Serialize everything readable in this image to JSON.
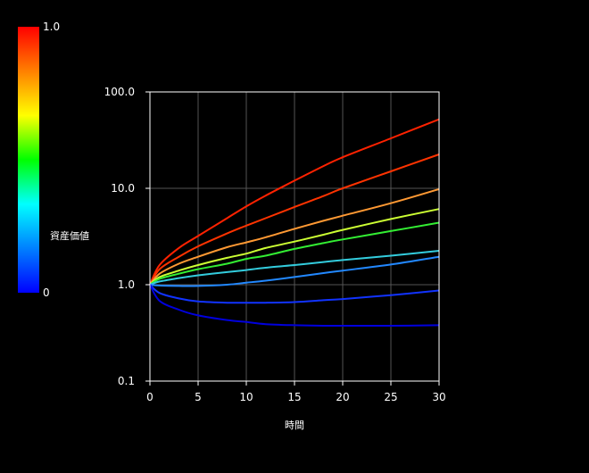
{
  "chart_data": {
    "type": "line",
    "xlabel": "時間",
    "ylabel": "",
    "xlim": [
      0,
      30
    ],
    "ylim": [
      0.1,
      100
    ],
    "yscale": "log",
    "grid": true,
    "x_ticks": [
      "0",
      "5",
      "10",
      "15",
      "20",
      "25",
      "30"
    ],
    "y_ticks": [
      "100.0",
      "10.0",
      "1.0",
      "0.1"
    ],
    "colorbar": {
      "label": "資産価値",
      "min_label": "0",
      "max_label": "1.0",
      "colors": [
        "#0000ff",
        "#0080ff",
        "#00ffff",
        "#00ff00",
        "#ffff00",
        "#ff8000",
        "#ff0000"
      ]
    },
    "x": [
      0,
      1,
      3,
      5,
      8,
      10,
      12,
      15,
      18,
      20,
      25,
      30
    ],
    "series": [
      {
        "color": "#ff2200",
        "values": [
          1.0,
          1.6,
          2.4,
          3.2,
          4.9,
          6.5,
          8.4,
          12.0,
          17.0,
          21.0,
          33.0,
          52.0
        ]
      },
      {
        "color": "#ff3300",
        "values": [
          1.0,
          1.45,
          1.95,
          2.5,
          3.4,
          4.1,
          4.9,
          6.4,
          8.3,
          10.0,
          15.0,
          22.5
        ]
      },
      {
        "color": "#ff9933",
        "values": [
          1.0,
          1.3,
          1.65,
          1.95,
          2.45,
          2.75,
          3.1,
          3.8,
          4.6,
          5.2,
          7.0,
          9.8
        ]
      },
      {
        "color": "#ccff33",
        "values": [
          1.0,
          1.2,
          1.4,
          1.6,
          1.9,
          2.1,
          2.4,
          2.8,
          3.3,
          3.7,
          4.8,
          6.1
        ]
      },
      {
        "color": "#33ee33",
        "values": [
          1.0,
          1.15,
          1.3,
          1.45,
          1.65,
          1.85,
          2.0,
          2.35,
          2.7,
          2.95,
          3.6,
          4.4
        ]
      },
      {
        "color": "#33ccdd",
        "values": [
          1.0,
          1.08,
          1.17,
          1.25,
          1.35,
          1.42,
          1.5,
          1.6,
          1.72,
          1.8,
          2.0,
          2.25
        ]
      },
      {
        "color": "#2288ff",
        "values": [
          1.0,
          0.98,
          0.97,
          0.97,
          1.0,
          1.05,
          1.1,
          1.2,
          1.32,
          1.4,
          1.62,
          1.95
        ]
      },
      {
        "color": "#1133ff",
        "values": [
          1.0,
          0.82,
          0.72,
          0.67,
          0.65,
          0.65,
          0.65,
          0.66,
          0.69,
          0.71,
          0.78,
          0.87
        ]
      },
      {
        "color": "#0000dd",
        "values": [
          1.0,
          0.68,
          0.55,
          0.48,
          0.43,
          0.41,
          0.39,
          0.38,
          0.375,
          0.375,
          0.375,
          0.38
        ]
      }
    ]
  }
}
